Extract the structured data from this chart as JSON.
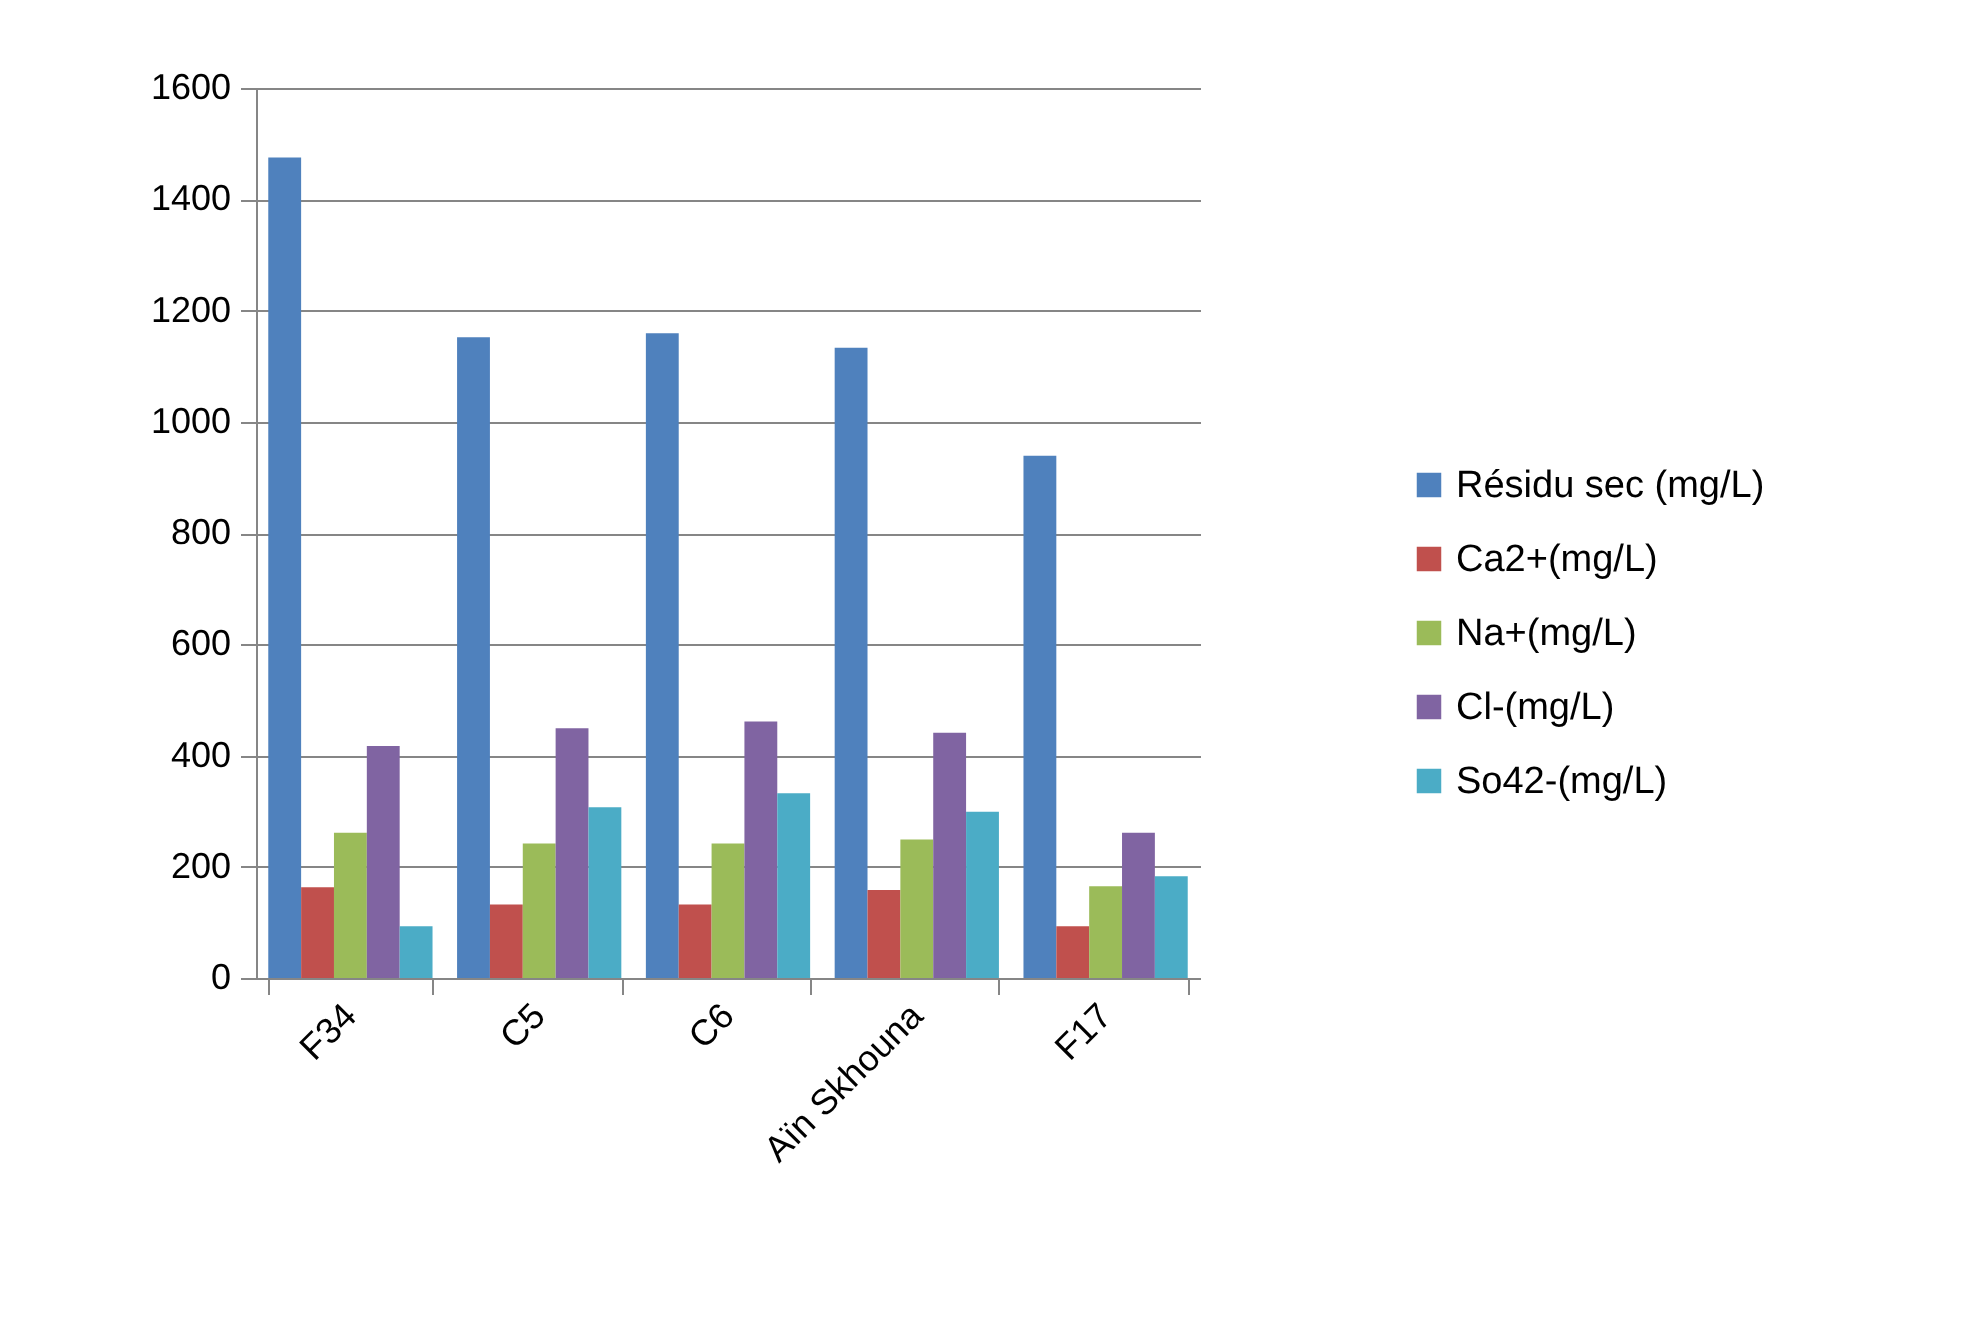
{
  "chart_data": {
    "type": "bar",
    "categories": [
      "F34",
      "C5",
      "C6",
      "Aïn Skhouna",
      "F17"
    ],
    "series": [
      {
        "name": "Résidu sec (mg/L)",
        "color": "#4f81bd",
        "values": [
          1475,
          1152,
          1159,
          1133,
          939
        ]
      },
      {
        "name": "Ca2+(mg/L)",
        "color": "#c0504d",
        "values": [
          163,
          132,
          132,
          158,
          93
        ]
      },
      {
        "name": "Na+(mg/L)",
        "color": "#9bbb59",
        "values": [
          261,
          242,
          242,
          249,
          165
        ]
      },
      {
        "name": "Cl-(mg/L)",
        "color": "#8064a2",
        "values": [
          417,
          449,
          461,
          441,
          261
        ]
      },
      {
        "name": "So42-(mg/L)",
        "color": "#4bacc6",
        "values": [
          93,
          307,
          332,
          299,
          183
        ]
      }
    ],
    "ylim": [
      0,
      1600
    ],
    "yticks": [
      0,
      200,
      400,
      600,
      800,
      1000,
      1200,
      1400,
      1600
    ],
    "grid": "y",
    "legend": "right"
  }
}
